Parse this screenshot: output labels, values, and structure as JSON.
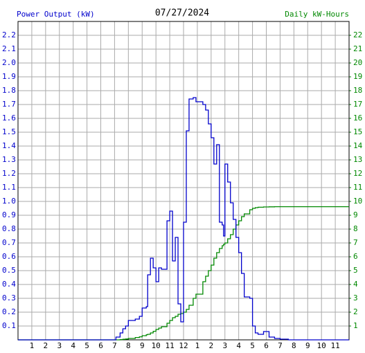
{
  "chart_data": {
    "type": "step",
    "title": "07/27/2024",
    "y_label": "Power Output (kW)",
    "y2_label": "Daily kW-Hours",
    "grid": true,
    "xlim": [
      0,
      24
    ],
    "xticks": [
      {
        "value": 1,
        "label": "1"
      },
      {
        "value": 2,
        "label": "2"
      },
      {
        "value": 3,
        "label": "3"
      },
      {
        "value": 4,
        "label": "4"
      },
      {
        "value": 5,
        "label": "5"
      },
      {
        "value": 6,
        "label": "6"
      },
      {
        "value": 7,
        "label": "7"
      },
      {
        "value": 8,
        "label": "8"
      },
      {
        "value": 9,
        "label": "9"
      },
      {
        "value": 10,
        "label": "10"
      },
      {
        "value": 11,
        "label": "11"
      },
      {
        "value": 12,
        "label": "12"
      },
      {
        "value": 13,
        "label": "1"
      },
      {
        "value": 14,
        "label": "2"
      },
      {
        "value": 15,
        "label": "3"
      },
      {
        "value": 16,
        "label": "4"
      },
      {
        "value": 17,
        "label": "5"
      },
      {
        "value": 18,
        "label": "6"
      },
      {
        "value": 19,
        "label": "7"
      },
      {
        "value": 20,
        "label": "8"
      },
      {
        "value": 21,
        "label": "9"
      },
      {
        "value": 22,
        "label": "10"
      },
      {
        "value": 23,
        "label": "11"
      }
    ],
    "ylim": [
      0,
      2.3
    ],
    "yticks": [
      0.1,
      0.2,
      0.3,
      0.4,
      0.5,
      0.6,
      0.7,
      0.8,
      0.9,
      {
        "value": 1,
        "label": "1.0"
      },
      1.1,
      1.2,
      1.3,
      1.4,
      1.5,
      1.6,
      1.7,
      1.8,
      1.9,
      {
        "value": 2,
        "label": "2.0"
      },
      2.1,
      2.2
    ],
    "y2lim": [
      0,
      23
    ],
    "y2ticks": [
      1,
      2,
      3,
      4,
      5,
      6,
      7,
      8,
      9,
      10,
      11,
      12,
      13,
      14,
      15,
      16,
      17,
      18,
      19,
      20,
      21,
      22
    ],
    "x": [
      0,
      7.1,
      7.4,
      7.6,
      7.8,
      8.0,
      8.5,
      8.8,
      9.0,
      9.3,
      9.4,
      9.6,
      9.8,
      10.0,
      10.2,
      10.4,
      10.8,
      11.0,
      11.2,
      11.4,
      11.6,
      11.8,
      12.0,
      12.2,
      12.4,
      12.7,
      12.9,
      13.4,
      13.6,
      13.8,
      14.0,
      14.2,
      14.4,
      14.6,
      14.8,
      14.9,
      15.0,
      15.2,
      15.4,
      15.6,
      15.8,
      16.0,
      16.2,
      16.4,
      16.8,
      17.0,
      17.2,
      17.4,
      17.8,
      18.2,
      18.6,
      19.0,
      19.6,
      24
    ],
    "series": [
      {
        "color": "#0000cc",
        "values": [
          0,
          0.02,
          0.05,
          0.08,
          0.1,
          0.14,
          0.15,
          0.17,
          0.23,
          0.24,
          0.47,
          0.59,
          0.52,
          0.42,
          0.52,
          0.51,
          0.86,
          0.93,
          0.57,
          0.74,
          0.26,
          0.13,
          0.85,
          1.51,
          1.74,
          1.75,
          1.72,
          1.7,
          1.66,
          1.56,
          1.46,
          1.27,
          1.41,
          0.85,
          0.83,
          0.75,
          1.27,
          1.14,
          0.99,
          0.87,
          0.74,
          0.63,
          0.48,
          0.31,
          0.3,
          0.1,
          0.05,
          0.04,
          0.06,
          0.02,
          0.01,
          0.005,
          0,
          0
        ]
      },
      {
        "color": "#008800",
        "axis": "y2",
        "values": [
          0,
          0,
          0.02,
          0.04,
          0.06,
          0.1,
          0.17,
          0.22,
          0.3,
          0.37,
          0.4,
          0.5,
          0.62,
          0.75,
          0.85,
          0.95,
          1.2,
          1.4,
          1.6,
          1.7,
          1.85,
          1.9,
          2.0,
          2.2,
          2.5,
          3.0,
          3.3,
          4.2,
          4.6,
          5.0,
          5.4,
          5.9,
          6.3,
          6.6,
          6.8,
          6.9,
          7.0,
          7.3,
          7.6,
          8.0,
          8.3,
          8.6,
          8.9,
          9.1,
          9.4,
          9.5,
          9.55,
          9.58,
          9.6,
          9.61,
          9.62,
          9.62,
          9.62,
          9.62
        ]
      }
    ]
  }
}
